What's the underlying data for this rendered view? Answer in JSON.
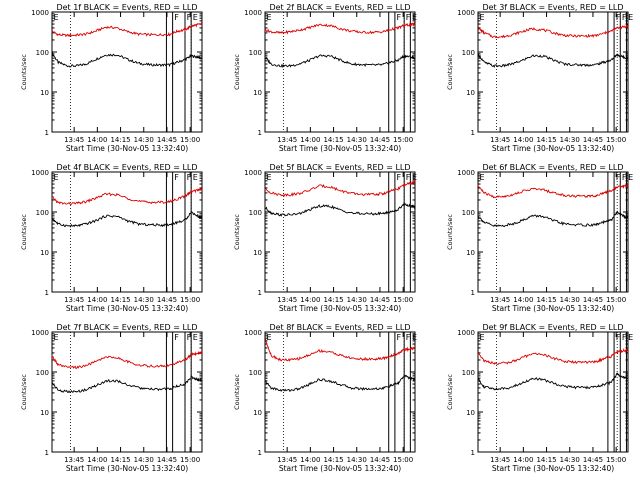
{
  "figure": {
    "x_axis_title": "Start Time (30-Nov-05 13:32:40)",
    "y_axis_title": "Counts/sec",
    "x_tick_labels": [
      "13:45",
      "14:00",
      "14:15",
      "14:30",
      "14:45",
      "15:00"
    ],
    "y_tick_labels": [
      "1",
      "10",
      "100",
      "1000"
    ],
    "flag_labels": [
      "E",
      "F",
      "F",
      "E"
    ],
    "colors": {
      "events": "#000000",
      "lld": "#dd0000",
      "axes": "#000000"
    }
  },
  "chart_data": [
    {
      "type": "line",
      "title": "Det 1f BLACK = Events, RED = LLD",
      "xlabel": "Start Time (30-Nov-05 13:32:40)",
      "ylabel": "Counts/sec",
      "x_unit": "minutes after 13:32:40",
      "y_scale": "log",
      "ylim": [
        1,
        1000
      ],
      "xlim": [
        -2,
        95
      ],
      "x": [
        -2,
        2,
        8,
        14,
        20,
        26,
        33,
        40,
        47,
        54,
        61,
        68,
        74,
        79,
        84,
        88,
        92,
        95
      ],
      "series": [
        {
          "name": "Events",
          "values": [
            95,
            55,
            45,
            45,
            50,
            65,
            85,
            85,
            65,
            52,
            48,
            47,
            48,
            55,
            65,
            80,
            75,
            70
          ]
        },
        {
          "name": "LLD",
          "values": [
            330,
            270,
            260,
            265,
            280,
            330,
            420,
            400,
            320,
            280,
            270,
            270,
            275,
            330,
            360,
            440,
            480,
            500
          ]
        }
      ],
      "dotted_lines_x": [
        10,
        88
      ],
      "solid_lines_x": [
        72,
        76,
        84,
        88
      ]
    },
    {
      "type": "line",
      "title": "Det 2f BLACK = Events, RED = LLD",
      "xlabel": "Start Time (30-Nov-05 13:32:40)",
      "ylabel": "Counts/sec",
      "x_unit": "minutes after 13:32:40",
      "y_scale": "log",
      "ylim": [
        1,
        1000
      ],
      "xlim": [
        -2,
        95
      ],
      "x": [
        -2,
        2,
        8,
        14,
        20,
        26,
        33,
        40,
        47,
        54,
        61,
        68,
        74,
        79,
        84,
        88,
        92,
        95
      ],
      "series": [
        {
          "name": "Events",
          "values": [
            75,
            50,
            45,
            45,
            50,
            60,
            80,
            80,
            62,
            50,
            48,
            47,
            48,
            55,
            62,
            80,
            75,
            70
          ]
        },
        {
          "name": "LLD",
          "values": [
            360,
            320,
            300,
            320,
            350,
            400,
            480,
            460,
            380,
            330,
            310,
            310,
            320,
            360,
            400,
            460,
            480,
            500
          ]
        }
      ],
      "dotted_lines_x": [
        10,
        88
      ],
      "solid_lines_x": [
        78,
        82,
        88,
        92
      ]
    },
    {
      "type": "line",
      "title": "Det 3f BLACK = Events, RED = LLD",
      "xlabel": "Start Time (30-Nov-05 13:32:40)",
      "ylabel": "Counts/sec",
      "x_unit": "minutes after 13:32:40",
      "y_scale": "log",
      "ylim": [
        1,
        1000
      ],
      "xlim": [
        -2,
        95
      ],
      "x": [
        -2,
        2,
        8,
        14,
        20,
        26,
        33,
        40,
        47,
        54,
        61,
        68,
        74,
        79,
        84,
        88,
        92,
        95
      ],
      "series": [
        {
          "name": "Events",
          "values": [
            90,
            55,
            45,
            45,
            50,
            60,
            80,
            80,
            62,
            50,
            48,
            47,
            48,
            55,
            62,
            85,
            75,
            70
          ]
        },
        {
          "name": "LLD",
          "values": [
            400,
            300,
            240,
            240,
            270,
            320,
            380,
            360,
            300,
            260,
            250,
            250,
            255,
            290,
            330,
            400,
            420,
            450
          ]
        }
      ],
      "dotted_lines_x": [
        10,
        88
      ],
      "solid_lines_x": [
        82,
        86,
        90,
        94
      ]
    },
    {
      "type": "line",
      "title": "Det 4f BLACK = Events, RED = LLD",
      "xlabel": "Start Time (30-Nov-05 13:32:40)",
      "ylabel": "Counts/sec",
      "x_unit": "minutes after 13:32:40",
      "y_scale": "log",
      "ylim": [
        1,
        1000
      ],
      "xlim": [
        -2,
        95
      ],
      "x": [
        -2,
        2,
        8,
        14,
        20,
        26,
        33,
        40,
        47,
        54,
        61,
        68,
        74,
        79,
        84,
        88,
        92,
        95
      ],
      "series": [
        {
          "name": "Events",
          "values": [
            70,
            50,
            45,
            45,
            50,
            60,
            80,
            78,
            60,
            50,
            48,
            47,
            48,
            55,
            62,
            100,
            80,
            70
          ]
        },
        {
          "name": "LLD",
          "values": [
            240,
            170,
            160,
            165,
            180,
            220,
            280,
            270,
            220,
            185,
            175,
            175,
            180,
            210,
            250,
            320,
            350,
            380
          ]
        }
      ],
      "dotted_lines_x": [
        10,
        88
      ],
      "solid_lines_x": [
        72,
        76,
        84,
        88
      ]
    },
    {
      "type": "line",
      "title": "Det 5f BLACK = Events, RED = LLD",
      "xlabel": "Start Time (30-Nov-05 13:32:40)",
      "ylabel": "Counts/sec",
      "x_unit": "minutes after 13:32:40",
      "y_scale": "log",
      "ylim": [
        1,
        1000
      ],
      "xlim": [
        -2,
        95
      ],
      "x": [
        -2,
        2,
        8,
        14,
        20,
        26,
        33,
        40,
        47,
        54,
        61,
        68,
        74,
        79,
        84,
        88,
        92,
        95
      ],
      "series": [
        {
          "name": "Events",
          "values": [
            130,
            95,
            85,
            85,
            90,
            110,
            140,
            140,
            110,
            95,
            90,
            90,
            92,
            100,
            115,
            160,
            140,
            130
          ]
        },
        {
          "name": "LLD",
          "values": [
            380,
            300,
            270,
            270,
            290,
            340,
            450,
            430,
            340,
            290,
            275,
            275,
            285,
            330,
            380,
            480,
            520,
            560
          ]
        }
      ],
      "dotted_lines_x": [
        10,
        88
      ],
      "solid_lines_x": [
        78,
        82,
        88,
        92
      ]
    },
    {
      "type": "line",
      "title": "Det 6f BLACK = Events, RED = LLD",
      "xlabel": "Start Time (30-Nov-05 13:32:40)",
      "ylabel": "Counts/sec",
      "x_unit": "minutes after 13:32:40",
      "y_scale": "log",
      "ylim": [
        1,
        1000
      ],
      "xlim": [
        -2,
        95
      ],
      "x": [
        -2,
        2,
        8,
        14,
        20,
        26,
        33,
        40,
        47,
        54,
        61,
        68,
        74,
        79,
        84,
        88,
        92,
        95
      ],
      "series": [
        {
          "name": "Events",
          "values": [
            80,
            55,
            45,
            45,
            50,
            60,
            80,
            78,
            60,
            50,
            48,
            47,
            48,
            55,
            62,
            100,
            80,
            70
          ]
        },
        {
          "name": "LLD",
          "values": [
            450,
            300,
            240,
            240,
            270,
            320,
            380,
            360,
            300,
            260,
            250,
            250,
            255,
            300,
            340,
            420,
            440,
            460
          ]
        }
      ],
      "dotted_lines_x": [
        10,
        88
      ],
      "solid_lines_x": [
        82,
        86,
        90,
        94
      ]
    },
    {
      "type": "line",
      "title": "Det 7f BLACK = Events, RED = LLD",
      "xlabel": "Start Time (30-Nov-05 13:32:40)",
      "ylabel": "Counts/sec",
      "x_unit": "minutes after 13:32:40",
      "y_scale": "log",
      "ylim": [
        1,
        1000
      ],
      "xlim": [
        -2,
        95
      ],
      "x": [
        -2,
        2,
        8,
        14,
        20,
        26,
        33,
        40,
        47,
        54,
        61,
        68,
        74,
        79,
        84,
        88,
        92,
        95
      ],
      "series": [
        {
          "name": "Events",
          "values": [
            55,
            35,
            32,
            32,
            36,
            45,
            60,
            60,
            48,
            40,
            37,
            37,
            38,
            44,
            50,
            75,
            65,
            60
          ]
        },
        {
          "name": "LLD",
          "values": [
            250,
            150,
            130,
            130,
            145,
            180,
            240,
            230,
            180,
            150,
            140,
            140,
            145,
            170,
            200,
            270,
            290,
            310
          ]
        }
      ],
      "dotted_lines_x": [
        10,
        88
      ],
      "solid_lines_x": [
        72,
        76,
        84,
        88
      ]
    },
    {
      "type": "line",
      "title": "Det 8f BLACK = Events, RED = LLD",
      "xlabel": "Start Time (30-Nov-05 13:32:40)",
      "ylabel": "Counts/sec",
      "x_unit": "minutes after 13:32:40",
      "y_scale": "log",
      "ylim": [
        1,
        1000
      ],
      "xlim": [
        -2,
        95
      ],
      "x": [
        -2,
        2,
        8,
        14,
        20,
        26,
        33,
        40,
        47,
        54,
        61,
        68,
        74,
        79,
        84,
        88,
        92,
        95
      ],
      "series": [
        {
          "name": "Events",
          "values": [
            60,
            40,
            35,
            35,
            38,
            48,
            65,
            60,
            48,
            40,
            38,
            38,
            39,
            45,
            52,
            80,
            70,
            65
          ]
        },
        {
          "name": "LLD",
          "values": [
            700,
            260,
            200,
            200,
            215,
            260,
            340,
            320,
            260,
            220,
            210,
            210,
            215,
            250,
            290,
            360,
            380,
            400
          ]
        }
      ],
      "dotted_lines_x": [
        10,
        88
      ],
      "solid_lines_x": [
        78,
        82,
        88,
        92
      ]
    },
    {
      "type": "line",
      "title": "Det 9f BLACK = Events, RED = LLD",
      "xlabel": "Start Time (30-Nov-05 13:32:40)",
      "ylabel": "Counts/sec",
      "x_unit": "minutes after 13:32:40",
      "y_scale": "log",
      "ylim": [
        1,
        1000
      ],
      "xlim": [
        -2,
        95
      ],
      "x": [
        -2,
        2,
        8,
        14,
        20,
        26,
        33,
        40,
        47,
        54,
        61,
        68,
        74,
        79,
        84,
        88,
        92,
        95
      ],
      "series": [
        {
          "name": "Events",
          "values": [
            70,
            42,
            38,
            38,
            42,
            52,
            68,
            65,
            52,
            44,
            41,
            41,
            42,
            48,
            55,
            90,
            75,
            70
          ]
        },
        {
          "name": "LLD",
          "values": [
            320,
            190,
            165,
            165,
            180,
            220,
            290,
            275,
            220,
            185,
            175,
            175,
            180,
            210,
            245,
            320,
            340,
            360
          ]
        }
      ],
      "dotted_lines_x": [
        10,
        88
      ],
      "solid_lines_x": [
        82,
        86,
        90,
        94
      ]
    }
  ]
}
